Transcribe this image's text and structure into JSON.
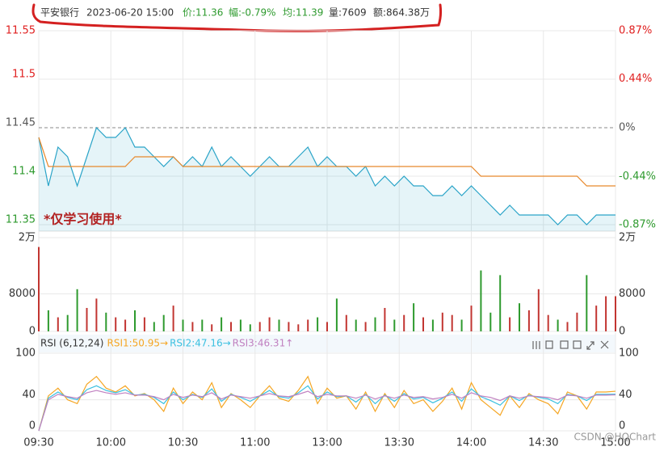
{
  "header": {
    "name": "平安银行",
    "datetime": "2023-06-20 15:00",
    "price": "价:11.36",
    "change": "幅:-0.79%",
    "average": "均:11.39",
    "volume": "量:7609",
    "amount": "额:864.38万"
  },
  "watermark": "*仅学习使用*",
  "credit": "CSDN @HQChart",
  "chart_data": [
    {
      "type": "line",
      "baseline": 11.45,
      "x": [
        0,
        4,
        8,
        12,
        16,
        20,
        24,
        28,
        32,
        36,
        40,
        44,
        48,
        52,
        56,
        60,
        64,
        68,
        72,
        76,
        80,
        84,
        88,
        92,
        96,
        100,
        104,
        108,
        112,
        116,
        120,
        124,
        128,
        132,
        136,
        140,
        144,
        148,
        152,
        156,
        160,
        164,
        168,
        172,
        176,
        180,
        184,
        188,
        192,
        196,
        200,
        204,
        208,
        212,
        216,
        220,
        224,
        228,
        232,
        236,
        240
      ],
      "xlim": [
        0,
        240
      ],
      "series": [
        {
          "color": "#2aa4c8",
          "fill": "rgba(42,164,200,0.12)",
          "values": [
            11.44,
            11.39,
            11.43,
            11.42,
            11.39,
            11.42,
            11.45,
            11.44,
            11.44,
            11.45,
            11.43,
            11.43,
            11.42,
            11.41,
            11.42,
            11.41,
            11.42,
            11.41,
            11.43,
            11.41,
            11.42,
            11.41,
            11.4,
            11.41,
            11.42,
            11.41,
            11.41,
            11.42,
            11.43,
            11.41,
            11.42,
            11.41,
            11.41,
            11.4,
            11.41,
            11.39,
            11.4,
            11.39,
            11.4,
            11.39,
            11.39,
            11.38,
            11.38,
            11.39,
            11.38,
            11.39,
            11.38,
            11.37,
            11.36,
            11.37,
            11.36,
            11.36,
            11.36,
            11.36,
            11.35,
            11.36,
            11.36,
            11.35,
            11.36,
            11.36,
            11.36
          ]
        },
        {
          "color": "#e8892c",
          "values": [
            11.44,
            11.41,
            11.41,
            11.41,
            11.41,
            11.41,
            11.41,
            11.41,
            11.41,
            11.41,
            11.42,
            11.42,
            11.42,
            11.42,
            11.42,
            11.41,
            11.41,
            11.41,
            11.41,
            11.41,
            11.41,
            11.41,
            11.41,
            11.41,
            11.41,
            11.41,
            11.41,
            11.41,
            11.41,
            11.41,
            11.41,
            11.41,
            11.41,
            11.41,
            11.41,
            11.41,
            11.41,
            11.41,
            11.41,
            11.41,
            11.41,
            11.41,
            11.41,
            11.41,
            11.41,
            11.41,
            11.4,
            11.4,
            11.4,
            11.4,
            11.4,
            11.4,
            11.4,
            11.4,
            11.4,
            11.4,
            11.4,
            11.39,
            11.39,
            11.39,
            11.39
          ]
        }
      ],
      "ylim": [
        11.35,
        11.55
      ],
      "yticks": [
        11.35,
        11.4,
        11.45,
        11.5,
        11.55
      ],
      "y2lim": [
        -0.87,
        0.87
      ],
      "y2ticks": [
        {
          "value": -0.87,
          "label": "-0.87%"
        },
        {
          "value": -0.44,
          "label": "-0.44%"
        },
        {
          "value": 0,
          "label": "0%"
        },
        {
          "value": 0.44,
          "label": "0.44%"
        },
        {
          "value": 0.87,
          "label": "0.87%"
        }
      ],
      "up_color": "#e02020",
      "down_color": "#2e9a2e",
      "flat_color": "#555555"
    },
    {
      "type": "bar",
      "x": [
        0,
        4,
        8,
        12,
        16,
        20,
        24,
        28,
        32,
        36,
        40,
        44,
        48,
        52,
        56,
        60,
        64,
        68,
        72,
        76,
        80,
        84,
        88,
        92,
        96,
        100,
        104,
        108,
        112,
        116,
        120,
        124,
        128,
        132,
        136,
        140,
        144,
        148,
        152,
        156,
        160,
        164,
        168,
        172,
        176,
        180,
        184,
        188,
        192,
        196,
        200,
        204,
        208,
        212,
        216,
        220,
        224,
        228,
        232,
        236,
        240
      ],
      "xlim": [
        0,
        240
      ],
      "values": [
        18000,
        4500,
        3000,
        3500,
        9000,
        5000,
        7000,
        4000,
        3000,
        2500,
        4500,
        3000,
        2000,
        3500,
        5500,
        2500,
        2000,
        2500,
        1500,
        3000,
        2000,
        2500,
        1500,
        2000,
        3000,
        2500,
        2000,
        1500,
        2500,
        3000,
        2000,
        7000,
        3500,
        2500,
        2000,
        3000,
        5000,
        2500,
        3500,
        6000,
        3000,
        2500,
        4000,
        3500,
        2500,
        5500,
        13000,
        4000,
        12000,
        3000,
        6000,
        4500,
        9000,
        3500,
        2500,
        2000,
        4000,
        12000,
        5500,
        7500,
        7500
      ],
      "ylim": [
        0,
        20000
      ],
      "yticks": [
        0,
        8000,
        {
          "value": 20000,
          "label": "2万"
        }
      ],
      "up_color": "#c23531",
      "down_color": "#2e9a2e"
    },
    {
      "type": "line",
      "title": "RSI (6,12,24)",
      "x": [
        0,
        4,
        8,
        12,
        16,
        20,
        24,
        28,
        32,
        36,
        40,
        44,
        48,
        52,
        56,
        60,
        64,
        68,
        72,
        76,
        80,
        84,
        88,
        92,
        96,
        100,
        104,
        108,
        112,
        116,
        120,
        124,
        128,
        132,
        136,
        140,
        144,
        148,
        152,
        156,
        160,
        164,
        168,
        172,
        176,
        180,
        184,
        188,
        192,
        196,
        200,
        204,
        208,
        212,
        216,
        220,
        224,
        228,
        232,
        236,
        240
      ],
      "xlim": [
        0,
        240
      ],
      "xticks": [
        {
          "value": 0,
          "label": "09:30"
        },
        {
          "value": 30,
          "label": "10:00"
        },
        {
          "value": 60,
          "label": "10:30"
        },
        {
          "value": 90,
          "label": "11:00"
        },
        {
          "value": 120,
          "label": "13:00"
        },
        {
          "value": 150,
          "label": "13:30"
        },
        {
          "value": 180,
          "label": "14:00"
        },
        {
          "value": 210,
          "label": "14:30"
        },
        {
          "value": 240,
          "label": "15:00"
        }
      ],
      "series": [
        {
          "name": "RSI1:50.95→",
          "color": "#f5a623",
          "values": [
            0,
            45,
            55,
            40,
            35,
            60,
            70,
            55,
            50,
            58,
            45,
            48,
            40,
            25,
            55,
            35,
            50,
            40,
            62,
            30,
            48,
            40,
            30,
            45,
            58,
            42,
            38,
            52,
            70,
            35,
            55,
            42,
            45,
            28,
            50,
            25,
            48,
            30,
            52,
            35,
            40,
            25,
            38,
            55,
            28,
            62,
            40,
            30,
            20,
            45,
            30,
            48,
            40,
            35,
            22,
            50,
            45,
            28,
            50,
            50,
            50.95
          ]
        },
        {
          "name": "RSI2:47.16→",
          "color": "#3bc0e0",
          "values": [
            0,
            42,
            50,
            43,
            40,
            53,
            58,
            52,
            49,
            53,
            46,
            47,
            43,
            35,
            50,
            40,
            47,
            43,
            54,
            38,
            47,
            43,
            38,
            45,
            52,
            44,
            42,
            49,
            58,
            41,
            50,
            44,
            45,
            37,
            47,
            35,
            46,
            38,
            48,
            41,
            43,
            36,
            42,
            50,
            38,
            54,
            44,
            39,
            33,
            45,
            39,
            46,
            43,
            41,
            35,
            47,
            45,
            39,
            47,
            47,
            47.16
          ]
        },
        {
          "name": "RSI3:46.31↑",
          "color": "#c080c0",
          "values": [
            0,
            40,
            47,
            44,
            42,
            49,
            52,
            49,
            47,
            49,
            46,
            46,
            44,
            40,
            47,
            43,
            46,
            44,
            49,
            41,
            46,
            44,
            42,
            45,
            48,
            45,
            44,
            47,
            51,
            44,
            47,
            45,
            45,
            42,
            46,
            41,
            45,
            42,
            46,
            43,
            44,
            41,
            43,
            47,
            42,
            49,
            45,
            43,
            39,
            45,
            42,
            45,
            44,
            43,
            40,
            46,
            45,
            42,
            46,
            46,
            46.31
          ]
        }
      ],
      "ylim": [
        0,
        100
      ],
      "yticks": [
        0,
        40,
        100
      ]
    }
  ]
}
